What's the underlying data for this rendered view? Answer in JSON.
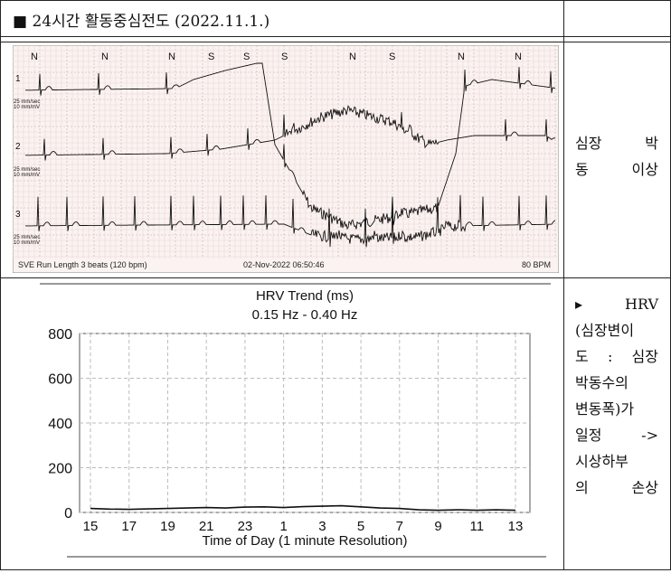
{
  "header": {
    "title": "■ 24시간 활동중심전도 (2022.11.1.)"
  },
  "ecg": {
    "beat_labels": [
      "N",
      "N",
      "N",
      "S",
      "S",
      "S",
      "N",
      "S",
      "N",
      "N"
    ],
    "leads": [
      {
        "number": "1",
        "speed": "25 mm/sec",
        "gain": "10 mm/mV"
      },
      {
        "number": "2",
        "speed": "25 mm/sec",
        "gain": "10 mm/mV"
      },
      {
        "number": "3",
        "speed": "25 mm/sec",
        "gain": "10 mm/mV"
      }
    ],
    "footer_left": "SVE Run Length 3 beats (120 bpm)",
    "footer_center": "02-Nov-2022 06:50:46",
    "footer_right": "80 BPM"
  },
  "ecg_note": {
    "lines": [
      "심장 박",
      "동 이상"
    ]
  },
  "hrv_chart": {
    "type": "line",
    "title": "HRV Trend (ms)",
    "subtitle": "0.15 Hz - 0.40 Hz",
    "x_label": "Time of Day (1 minute Resolution)",
    "categories": [
      15,
      null,
      17,
      null,
      19,
      null,
      21,
      null,
      23,
      null,
      1,
      null,
      3,
      null,
      5,
      null,
      7,
      null,
      9,
      null,
      11,
      null,
      13
    ],
    "values": [
      18,
      15,
      14,
      16,
      18,
      20,
      22,
      20,
      24,
      25,
      22,
      26,
      28,
      30,
      25,
      20,
      18,
      12,
      10,
      12,
      10,
      12,
      10
    ],
    "color": "#111111",
    "ylim": [
      0,
      800
    ],
    "yticks": [
      0,
      200,
      400,
      600,
      800
    ],
    "grid": true
  },
  "hrv_note": {
    "lines": [
      "▸ HRV",
      "(심장변이",
      "도 : 심장",
      "박동수의",
      "변동폭)가",
      "일정 ->",
      "시상하부",
      "의 손상"
    ]
  }
}
